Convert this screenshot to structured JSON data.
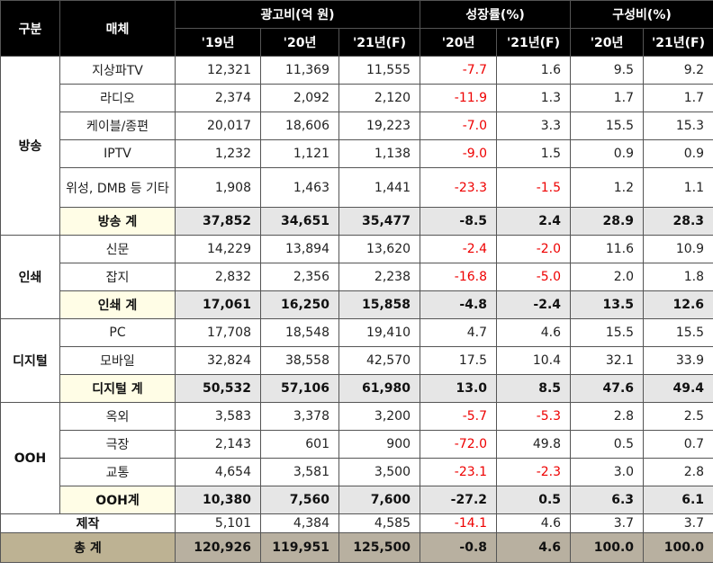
{
  "headers": {
    "category": "구분",
    "media": "매체",
    "ad_spend": "광고비(억 원)",
    "growth": "성장률(%)",
    "share": "구성비(%)",
    "years_spend": [
      "'19년",
      "'20년",
      "'21년(F)"
    ],
    "years_growth": [
      "'20년",
      "'21년(F)"
    ],
    "years_share": [
      "'20년",
      "'21년(F)"
    ]
  },
  "groups": [
    {
      "name": "방송",
      "rows": [
        {
          "media": "지상파TV",
          "v": [
            "12,321",
            "11,369",
            "11,555",
            "-7.7",
            "1.6",
            "9.5",
            "9.2"
          ]
        },
        {
          "media": "라디오",
          "v": [
            "2,374",
            "2,092",
            "2,120",
            "-11.9",
            "1.3",
            "1.7",
            "1.7"
          ]
        },
        {
          "media": "케이블/종편",
          "v": [
            "20,017",
            "18,606",
            "19,223",
            "-7.0",
            "3.3",
            "15.5",
            "15.3"
          ]
        },
        {
          "media": "IPTV",
          "v": [
            "1,232",
            "1,121",
            "1,138",
            "-9.0",
            "1.5",
            "0.9",
            "0.9"
          ]
        },
        {
          "media": "위성, DMB 등 기타",
          "v": [
            "1,908",
            "1,463",
            "1,441",
            "-23.3",
            "-1.5",
            "1.2",
            "1.1"
          ]
        }
      ],
      "subtotal": {
        "label": "방송 계",
        "v": [
          "37,852",
          "34,651",
          "35,477",
          "-8.5",
          "2.4",
          "28.9",
          "28.3"
        ]
      }
    },
    {
      "name": "인쇄",
      "rows": [
        {
          "media": "신문",
          "v": [
            "14,229",
            "13,894",
            "13,620",
            "-2.4",
            "-2.0",
            "11.6",
            "10.9"
          ]
        },
        {
          "media": "잡지",
          "v": [
            "2,832",
            "2,356",
            "2,238",
            "-16.8",
            "-5.0",
            "2.0",
            "1.8"
          ]
        }
      ],
      "subtotal": {
        "label": "인쇄 계",
        "v": [
          "17,061",
          "16,250",
          "15,858",
          "-4.8",
          "-2.4",
          "13.5",
          "12.6"
        ]
      }
    },
    {
      "name": "디지털",
      "rows": [
        {
          "media": "PC",
          "v": [
            "17,708",
            "18,548",
            "19,410",
            "4.7",
            "4.6",
            "15.5",
            "15.5"
          ]
        },
        {
          "media": "모바일",
          "v": [
            "32,824",
            "38,558",
            "42,570",
            "17.5",
            "10.4",
            "32.1",
            "33.9"
          ]
        }
      ],
      "subtotal": {
        "label": "디지털 계",
        "v": [
          "50,532",
          "57,106",
          "61,980",
          "13.0",
          "8.5",
          "47.6",
          "49.4"
        ]
      }
    },
    {
      "name": "OOH",
      "rows": [
        {
          "media": "옥외",
          "v": [
            "3,583",
            "3,378",
            "3,200",
            "-5.7",
            "-5.3",
            "2.8",
            "2.5"
          ]
        },
        {
          "media": "극장",
          "v": [
            "2,143",
            "601",
            "900",
            "-72.0",
            "49.8",
            "0.5",
            "0.7"
          ]
        },
        {
          "media": "교통",
          "v": [
            "4,654",
            "3,581",
            "3,500",
            "-23.1",
            "-2.3",
            "3.0",
            "2.8"
          ]
        }
      ],
      "subtotal": {
        "label": "OOH계",
        "v": [
          "10,380",
          "7,560",
          "7,600",
          "-27.2",
          "0.5",
          "6.3",
          "6.1"
        ]
      }
    }
  ],
  "production": {
    "label": "제작",
    "v": [
      "5,101",
      "4,384",
      "4,585",
      "-14.1",
      "4.6",
      "3.7",
      "3.7"
    ]
  },
  "total": {
    "label": "총 계",
    "v": [
      "120,926",
      "119,951",
      "125,500",
      "-0.8",
      "4.6",
      "100.0",
      "100.0"
    ]
  }
}
